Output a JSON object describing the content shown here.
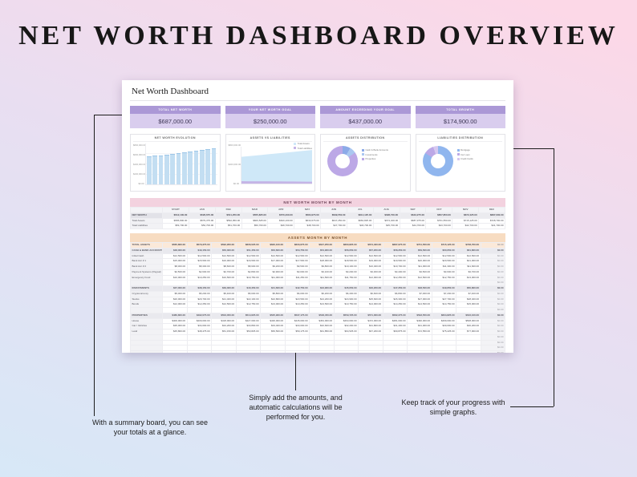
{
  "page": {
    "title": "NET WORTH DASHBOARD OVERVIEW"
  },
  "callouts": {
    "summary_note": "With a summary board, you can see your totals at a glance.",
    "amounts_note": "Simply add the amounts, and automatic calculations will be performed for you.",
    "graphs_note": "Keep track of your progress with simple graphs."
  },
  "dashboard": {
    "title": "Net Worth Dashboard",
    "summary_cards": [
      {
        "label": "TOTAL NET WORTH",
        "value": "$687,000.00"
      },
      {
        "label": "YOUR NET WORTH GOAL",
        "value": "$250,000.00"
      },
      {
        "label": "AMOUNT EXCEEDING YOUR GOAL",
        "value": "$437,000.00"
      },
      {
        "label": "TOTAL GROWTH",
        "value": "$174,900.00"
      }
    ],
    "networth_table": {
      "title": "NET WORTH MONTH BY MONTH",
      "columns": [
        "",
        "START",
        "JAN",
        "FEB",
        "MAR",
        "APR",
        "MAY",
        "JUN",
        "JUL",
        "AUG",
        "SEP",
        "OCT",
        "NOV",
        "DEC"
      ],
      "rows": [
        {
          "label": "NET WORTH",
          "emphasis": "bold",
          "values": [
            512100,
            526675,
            541250,
            555825,
            570400,
            584975,
            599550,
            614125,
            628700,
            643275,
            657850,
            672425,
            687000
          ]
        },
        {
          "label": "Total Assets",
          "values": [
            565800,
            579375,
            592950,
            606525,
            620100,
            633675,
            647250,
            660825,
            674400,
            687975,
            701550,
            715125,
            728700
          ]
        },
        {
          "label": "Total Liabilities",
          "values": [
            53700,
            52700,
            51700,
            50700,
            49700,
            48700,
            47700,
            46700,
            45700,
            44700,
            43700,
            42700,
            41700
          ]
        }
      ]
    },
    "assets_table": {
      "title": "ASSETS MONTH BY MONTH",
      "extra_column_value": 0,
      "rows": [
        {
          "label": "TOTAL ASSETS",
          "type": "total",
          "values": [
            565800,
            579375,
            592950,
            606525,
            620100,
            633675,
            647250,
            660825,
            674400,
            687975,
            701550,
            715125,
            728700
          ]
        },
        {
          "label": "CASH & BANK ACCOUNTS",
          "type": "section",
          "values": [
            48000,
            49150,
            50300,
            51450,
            52600,
            53750,
            54900,
            56050,
            57200,
            58350,
            59500,
            60650,
            61800
          ]
        },
        {
          "label": "Initial Cash",
          "type": "item",
          "values": [
            12500,
            12500,
            12500,
            12500,
            12500,
            12500,
            12500,
            12500,
            12500,
            12500,
            12500,
            12500,
            12500
          ]
        },
        {
          "label": "Bank Acc # 1",
          "type": "item",
          "values": [
            15000,
            15500,
            16000,
            16500,
            17000,
            17500,
            18000,
            18500,
            19000,
            19500,
            20000,
            20500,
            21000
          ]
        },
        {
          "label": "Bank Acc # 2",
          "type": "item",
          "values": [
            8000,
            8300,
            8600,
            8900,
            9200,
            9500,
            9800,
            10100,
            10400,
            10700,
            11000,
            11300,
            11600
          ]
        },
        {
          "label": "Payment Systems (Paypal)",
          "type": "item",
          "values": [
            2500,
            2600,
            2700,
            2800,
            2900,
            3000,
            3100,
            3200,
            3300,
            3400,
            3500,
            3600,
            3700
          ]
        },
        {
          "label": "Emergency Fund",
          "type": "item",
          "values": [
            10000,
            10250,
            10500,
            10750,
            11000,
            11250,
            11500,
            11750,
            12000,
            12250,
            12500,
            12750,
            13000
          ]
        },
        {
          "label": "",
          "type": "empty"
        },
        {
          "label": "INVESTMENTS",
          "type": "section",
          "values": [
            37000,
            38150,
            39300,
            40450,
            41600,
            42750,
            43900,
            45050,
            46200,
            47350,
            48500,
            49650,
            50800
          ]
        },
        {
          "label": "Cryptocurrency",
          "type": "item",
          "values": [
            5000,
            5200,
            5400,
            5600,
            5800,
            6000,
            6200,
            6400,
            6600,
            6800,
            7000,
            7200,
            7400
          ]
        },
        {
          "label": "Stocks",
          "type": "item",
          "values": [
            20000,
            20700,
            21400,
            22100,
            22800,
            23500,
            24200,
            24900,
            25600,
            26300,
            27000,
            27700,
            28400
          ]
        },
        {
          "label": "Bonds",
          "type": "item",
          "values": [
            12000,
            12250,
            12500,
            12750,
            13000,
            13250,
            13500,
            13750,
            14000,
            14250,
            14500,
            14750,
            15000
          ]
        },
        {
          "label": "",
          "type": "empty"
        },
        {
          "label": "PROPERTIES",
          "type": "section",
          "values": [
            480800,
            492075,
            503350,
            514625,
            525900,
            537175,
            548450,
            559725,
            571000,
            582275,
            593550,
            604825,
            616100
          ]
        },
        {
          "label": "House",
          "type": "item",
          "values": [
            400000,
            409000,
            418000,
            427000,
            436000,
            445000,
            454000,
            463000,
            472000,
            481000,
            490000,
            499000,
            508000
          ]
        },
        {
          "label": "Car / Vehicles",
          "type": "item",
          "values": [
            35000,
            34600,
            34200,
            33800,
            33400,
            33000,
            32600,
            32200,
            31800,
            31400,
            31000,
            30600,
            30200
          ]
        },
        {
          "label": "Land",
          "type": "item",
          "values": [
            45800,
            48475,
            51150,
            53825,
            56500,
            59175,
            61850,
            64525,
            67200,
            69875,
            72550,
            75225,
            77900
          ]
        },
        {
          "label": "",
          "type": "empty"
        },
        {
          "label": "",
          "type": "empty"
        },
        {
          "label": "",
          "type": "empty"
        },
        {
          "label": "",
          "type": "empty"
        },
        {
          "label": "",
          "type": "empty"
        },
        {
          "label": "",
          "type": "empty"
        },
        {
          "label": "",
          "type": "empty"
        },
        {
          "label": "",
          "type": "empty"
        },
        {
          "label": "",
          "type": "empty"
        },
        {
          "label": "",
          "type": "empty"
        },
        {
          "label": "",
          "type": "empty"
        }
      ]
    }
  },
  "chart_data": [
    {
      "type": "bar",
      "title": "NET WORTH EVOLUTION",
      "categories": [
        "Jan",
        "Feb",
        "Mar",
        "Apr",
        "May",
        "Jun",
        "Jul",
        "Aug",
        "Sep",
        "Oct",
        "Nov",
        "Dec"
      ],
      "values": [
        526675,
        541250,
        555825,
        570400,
        584975,
        599550,
        614125,
        628700,
        643275,
        657850,
        672425,
        687000
      ],
      "ylim": [
        0,
        800000
      ],
      "yticks": [
        "$800,000.00",
        "$600,000.00",
        "$400,000.00",
        "$200,000.00",
        "$0.00"
      ],
      "bar_color": "#c3def2"
    },
    {
      "type": "area",
      "title": "ASSETS VS LIABILITIES",
      "x": [
        "Jan",
        "Feb",
        "Mar",
        "Apr",
        "May",
        "Jun",
        "Jul",
        "Aug",
        "Sep",
        "Oct",
        "Nov",
        "Dec"
      ],
      "ylim": [
        0,
        800000
      ],
      "yticks": [
        "$800,000.00",
        "$400,000.00",
        "$0.00"
      ],
      "legend_position": "top-right",
      "series": [
        {
          "name": "Total Assets",
          "color": "#cfe8f8",
          "values": [
            579375,
            592950,
            606525,
            620100,
            633675,
            647250,
            660825,
            674400,
            687975,
            701550,
            715125,
            728700
          ]
        },
        {
          "name": "Total Liabilities",
          "color": "#c5b5e6",
          "values": [
            52700,
            51700,
            50700,
            49700,
            48700,
            47700,
            46700,
            45700,
            44700,
            43700,
            42700,
            41700
          ]
        }
      ]
    },
    {
      "type": "pie",
      "title": "ASSETS DISTRIBUTION",
      "segments": [
        {
          "label": "Cash & Bank Accounts",
          "value": 61800,
          "color": "#8caae8"
        },
        {
          "label": "Investments",
          "value": 50800,
          "color": "#aac7f0"
        },
        {
          "label": "Properties",
          "value": 616100,
          "color": "#bca8e6"
        }
      ]
    },
    {
      "type": "pie",
      "title": "LIABILITIES DISTRIBUTION",
      "segments": [
        {
          "label": "Mortgage",
          "value": 35000,
          "color": "#90b6ee"
        },
        {
          "label": "Car Loan",
          "value": 4500,
          "color": "#bca8e6"
        },
        {
          "label": "Credit Cards",
          "value": 2200,
          "color": "#d6c8f0"
        }
      ]
    }
  ]
}
